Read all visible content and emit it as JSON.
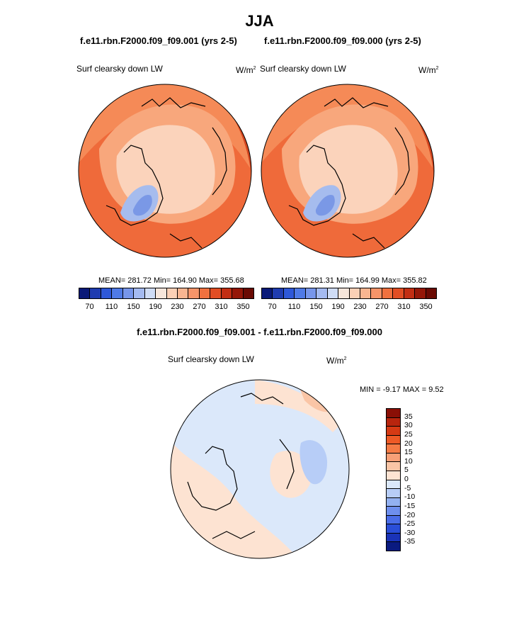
{
  "season_title": "JJA",
  "panels": [
    {
      "case_label": "f.e11.rbn.F2000.f09_f09.001 (yrs 2-5)",
      "field_label": "Surf clearsky down LW",
      "units": "W/m",
      "units_exp": "2",
      "stats": "MEAN= 281.72  Min= 164.90  Max= 355.68"
    },
    {
      "case_label": "f.e11.rbn.F2000.f09_f09.000 (yrs 2-5)",
      "field_label": "Surf clearsky down LW",
      "units": "W/m",
      "units_exp": "2",
      "stats": "MEAN= 281.31  Min= 164.99  Max= 355.82"
    }
  ],
  "colorbar_abs": {
    "colors": [
      "#0a1a78",
      "#1f3cb0",
      "#2e58d8",
      "#4f7ae6",
      "#7796ea",
      "#a4baf0",
      "#cfdcf5",
      "#f7e6db",
      "#fbd0b6",
      "#f8b591",
      "#f59469",
      "#f0713f",
      "#e14e24",
      "#c22e13",
      "#951708",
      "#6a0a03"
    ],
    "tick_labels": [
      "70",
      "110",
      "150",
      "190",
      "230",
      "270",
      "310",
      "350"
    ]
  },
  "diff": {
    "title": "f.e11.rbn.F2000.f09_f09.001 - f.e11.rbn.F2000.f09_f09.000",
    "field_label": "Surf clearsky down LW",
    "units": "W/m",
    "units_exp": "2",
    "minmax": "MIN =  -9.17 MAX =   9.52",
    "colorbar": {
      "colors": [
        "#8a0f06",
        "#b8250e",
        "#d63a14",
        "#ee5a26",
        "#f57b45",
        "#f8a077",
        "#fac5a6",
        "#fde3d2",
        "#dbe8fa",
        "#b7cdf7",
        "#93b1f1",
        "#6e8fee",
        "#4a6de8",
        "#2a4ed8",
        "#1a33b8",
        "#0a1a80"
      ],
      "tick_labels": [
        "35",
        "30",
        "25",
        "20",
        "15",
        "10",
        "5",
        "0",
        "-5",
        "-10",
        "-15",
        "-20",
        "-25",
        "-30",
        "-35"
      ]
    }
  }
}
